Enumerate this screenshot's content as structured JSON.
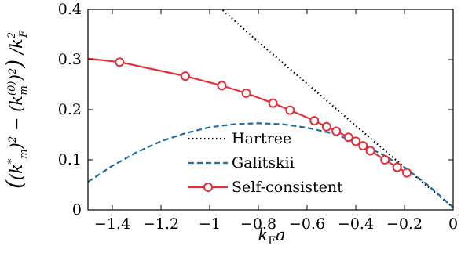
{
  "chart_data": {
    "type": "line",
    "xlabel": "k_F a",
    "ylabel": "((k*_m)^2 − (k_m^(0))^2) / k_F^2",
    "xlim": [
      -1.5,
      0
    ],
    "ylim": [
      0,
      0.4
    ],
    "xticks": [
      -1.4,
      -1.2,
      -1,
      -0.8,
      -0.6,
      -0.4,
      -0.2,
      0
    ],
    "xtick_labels": [
      "−1.4",
      "−1.2",
      "−1",
      "−0.8",
      "−0.6",
      "−0.4",
      "−0.2",
      "0"
    ],
    "yticks": [
      0,
      0.1,
      0.2,
      0.3,
      0.4
    ],
    "ytick_labels": [
      "0",
      "0.1",
      "0.2",
      "0.3",
      "0.4"
    ],
    "legend_position": "inside lower-middle",
    "grid": false,
    "series": [
      {
        "name": "Hartree",
        "style": "dotted",
        "color": "#000000",
        "x": [
          0,
          -0.2,
          -0.4,
          -0.6,
          -0.8,
          -0.95
        ],
        "y": [
          0.005,
          0.085,
          0.168,
          0.252,
          0.335,
          0.4
        ]
      },
      {
        "name": "Galitskii",
        "style": "dashed",
        "color": "#1f6f9f",
        "x": [
          -1.5,
          -1.4,
          -1.3,
          -1.2,
          -1.1,
          -1.0,
          -0.9,
          -0.8,
          -0.7,
          -0.6,
          -0.5,
          -0.4,
          -0.3,
          -0.2,
          -0.1,
          0
        ],
        "y": [
          0.056,
          0.088,
          0.115,
          0.137,
          0.153,
          0.165,
          0.171,
          0.173,
          0.171,
          0.164,
          0.153,
          0.136,
          0.113,
          0.085,
          0.048,
          0.005
        ]
      },
      {
        "name": "Self-consistent",
        "style": "solid",
        "marker": "circle",
        "color": "#e0313a",
        "x": [
          -1.5,
          -1.37,
          -1.1,
          -0.95,
          -0.85,
          -0.74,
          -0.67,
          -0.57,
          -0.52,
          -0.48,
          -0.43,
          -0.4,
          -0.37,
          -0.34,
          -0.28,
          -0.23,
          -0.19
        ],
        "y": [
          0.302,
          0.295,
          0.267,
          0.248,
          0.233,
          0.213,
          0.199,
          0.178,
          0.166,
          0.157,
          0.145,
          0.137,
          0.128,
          0.118,
          0.1,
          0.085,
          0.074
        ],
        "marker_x": [
          -1.37,
          -1.1,
          -0.95,
          -0.85,
          -0.74,
          -0.67,
          -0.57,
          -0.52,
          -0.48,
          -0.43,
          -0.4,
          -0.37,
          -0.34,
          -0.28,
          -0.23,
          -0.19
        ],
        "marker_y": [
          0.295,
          0.267,
          0.248,
          0.233,
          0.213,
          0.199,
          0.178,
          0.166,
          0.157,
          0.145,
          0.137,
          0.128,
          0.118,
          0.1,
          0.085,
          0.074
        ]
      }
    ]
  }
}
